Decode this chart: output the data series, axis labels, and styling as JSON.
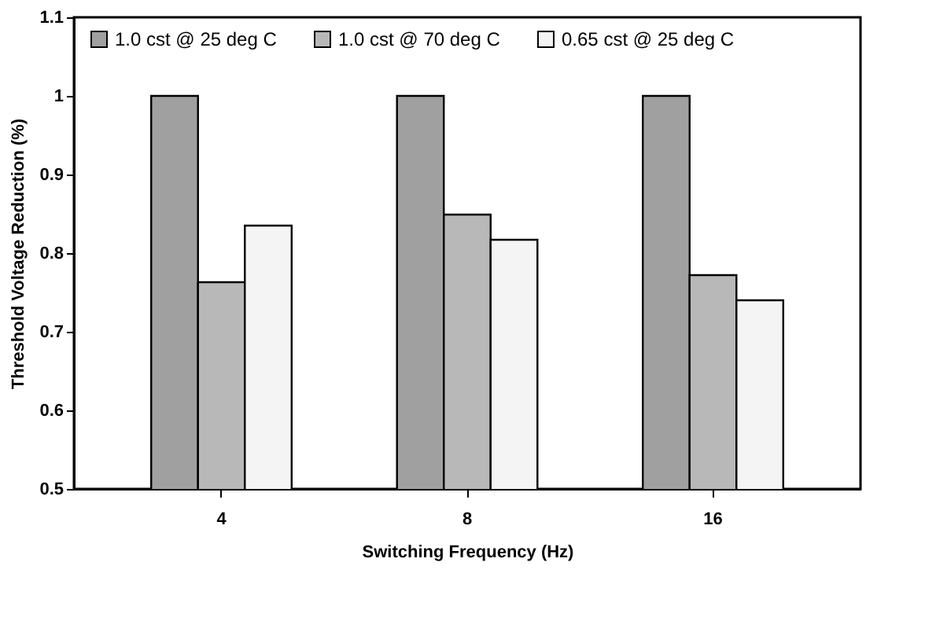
{
  "chart_data": {
    "type": "bar",
    "xlabel": "Switching Frequency (Hz)",
    "ylabel": "Threshold Voltage Reduction (%)",
    "categories": [
      "4",
      "8",
      "16"
    ],
    "series": [
      {
        "name": "1.0 cst @ 25 deg C",
        "color": "#a0a0a0",
        "values": [
          1.0,
          1.0,
          1.0
        ]
      },
      {
        "name": "1.0 cst @ 70 deg C",
        "color": "#b8b8b8",
        "values": [
          0.763,
          0.849,
          0.772
        ]
      },
      {
        "name": "0.65 cst @ 25 deg C",
        "color": "#f4f4f4",
        "values": [
          0.835,
          0.817,
          0.74
        ]
      }
    ],
    "ylim": [
      0.5,
      1.1
    ],
    "yticks": [
      0.5,
      0.6,
      0.7,
      0.8,
      0.9,
      {
        "value": 1,
        "label": "1"
      },
      1.1
    ],
    "grid": false,
    "legend": "top"
  }
}
